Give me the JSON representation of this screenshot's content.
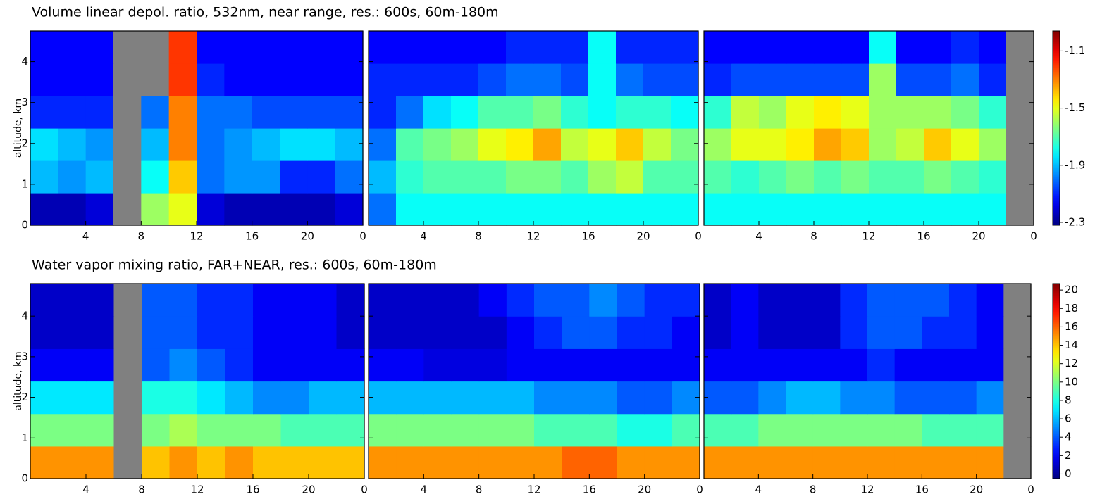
{
  "chart_data": [
    {
      "type": "heatmap",
      "title": "Volume linear depol. ratio, 532nm, near range, res.: 600s, 60m-180m",
      "ylabel": "altitude, km",
      "ylim": [
        0,
        4.75
      ],
      "yticks": [
        0,
        1,
        2,
        3,
        4
      ],
      "clim": [
        -2.32,
        -0.96
      ],
      "cticks": [
        -2.3,
        -1.9,
        -1.5,
        -1.1
      ],
      "panels": [
        {
          "xlim": [
            0,
            24
          ],
          "xticks": [
            4,
            8,
            12,
            16,
            20,
            {
              "value": 24,
              "label": "0"
            }
          ],
          "z": [
            [
              -2.25,
              -2.25,
              -2.2,
              null,
              -1.6,
              -1.5,
              -2.2,
              -2.25,
              -2.25,
              -2.25,
              -2.25,
              -2.2
            ],
            [
              -1.9,
              -1.95,
              -1.9,
              null,
              -1.8,
              -1.4,
              -2.0,
              -1.95,
              -1.95,
              -2.1,
              -2.1,
              -2.0
            ],
            [
              -1.85,
              -1.9,
              -1.95,
              null,
              -1.9,
              -1.3,
              -2.0,
              -1.95,
              -1.9,
              -1.85,
              -1.85,
              -1.9
            ],
            [
              -2.1,
              -2.1,
              -2.1,
              null,
              -2.0,
              -1.3,
              -2.0,
              -2.0,
              -2.05,
              -2.05,
              -2.05,
              -2.05
            ],
            [
              -2.15,
              -2.15,
              -2.15,
              null,
              null,
              -1.2,
              -2.1,
              -2.15,
              -2.15,
              -2.15,
              -2.15,
              -2.15
            ],
            [
              -2.15,
              -2.15,
              -2.15,
              null,
              null,
              -1.2,
              -2.15,
              -2.15,
              -2.15,
              -2.15,
              -2.15,
              -2.15
            ]
          ]
        },
        {
          "xlim": [
            0,
            24
          ],
          "xticks": [
            4,
            8,
            12,
            16,
            20,
            {
              "value": 24,
              "label": "0"
            }
          ],
          "z": [
            [
              -2.0,
              -1.8,
              -1.8,
              -1.8,
              -1.8,
              -1.8,
              -1.8,
              -1.8,
              -1.8,
              -1.8,
              -1.8,
              -1.8
            ],
            [
              -1.9,
              -1.75,
              -1.7,
              -1.7,
              -1.7,
              -1.65,
              -1.65,
              -1.7,
              -1.6,
              -1.55,
              -1.7,
              -1.7
            ],
            [
              -2.0,
              -1.7,
              -1.65,
              -1.6,
              -1.5,
              -1.45,
              -1.35,
              -1.55,
              -1.5,
              -1.4,
              -1.55,
              -1.65
            ],
            [
              -2.1,
              -2.0,
              -1.85,
              -1.8,
              -1.7,
              -1.7,
              -1.65,
              -1.75,
              -1.8,
              -1.75,
              -1.75,
              -1.8
            ],
            [
              -2.1,
              -2.1,
              -2.1,
              -2.1,
              -2.05,
              -2.0,
              -2.0,
              -2.05,
              -1.8,
              -2.0,
              -2.05,
              -2.05
            ],
            [
              -2.15,
              -2.15,
              -2.15,
              -2.15,
              -2.15,
              -2.1,
              -2.1,
              -2.1,
              -1.8,
              -2.1,
              -2.1,
              -2.1
            ]
          ]
        },
        {
          "xlim": [
            0,
            24
          ],
          "xticks": [
            4,
            8,
            12,
            16,
            20,
            {
              "value": 24,
              "label": "0"
            }
          ],
          "z": [
            [
              -1.8,
              -1.8,
              -1.8,
              -1.8,
              -1.8,
              -1.8,
              -1.8,
              -1.8,
              -1.8,
              -1.8,
              -1.8,
              null
            ],
            [
              -1.7,
              -1.75,
              -1.7,
              -1.65,
              -1.7,
              -1.65,
              -1.7,
              -1.7,
              -1.65,
              -1.7,
              -1.75,
              null
            ],
            [
              -1.6,
              -1.5,
              -1.5,
              -1.45,
              -1.35,
              -1.4,
              -1.6,
              -1.55,
              -1.4,
              -1.5,
              -1.6,
              null
            ],
            [
              -1.75,
              -1.55,
              -1.6,
              -1.5,
              -1.45,
              -1.5,
              -1.6,
              -1.6,
              -1.6,
              -1.65,
              -1.75,
              null
            ],
            [
              -2.1,
              -2.05,
              -2.05,
              -2.05,
              -2.05,
              -2.05,
              -1.6,
              -2.05,
              -2.05,
              -2.0,
              -2.1,
              null
            ],
            [
              -2.15,
              -2.15,
              -2.15,
              -2.15,
              -2.15,
              -2.15,
              -1.8,
              -2.15,
              -2.15,
              -2.1,
              -2.15,
              null
            ]
          ]
        }
      ]
    },
    {
      "type": "heatmap",
      "title": "Water vapor mixing ratio, FAR+NEAR, res.: 600s, 60m-180m",
      "ylabel": "altitude, km",
      "ylim": [
        0,
        4.8
      ],
      "yticks": [
        0,
        1,
        2,
        3,
        4
      ],
      "clim": [
        -0.5,
        20.7
      ],
      "cticks": [
        0,
        2,
        4,
        6,
        8,
        10,
        12,
        14,
        16,
        18,
        20
      ],
      "panels": [
        {
          "xlim": [
            0,
            24
          ],
          "xticks": [
            4,
            8,
            12,
            16,
            20,
            {
              "value": 24,
              "label": "0"
            }
          ],
          "z": [
            [
              15,
              15,
              15,
              null,
              14,
              15,
              14,
              15,
              14,
              14,
              14,
              14
            ],
            [
              10,
              10,
              10,
              null,
              10,
              11,
              10,
              10,
              10,
              9,
              9,
              9
            ],
            [
              7,
              7,
              7,
              null,
              8,
              8,
              7,
              6,
              5,
              5,
              6,
              6
            ],
            [
              2,
              2,
              2,
              null,
              4,
              5,
              4,
              3,
              2,
              2,
              2,
              2
            ],
            [
              1,
              1,
              1,
              null,
              4,
              4,
              3,
              3,
              2,
              2,
              2,
              1
            ],
            [
              1,
              1,
              1,
              null,
              4,
              4,
              3,
              3,
              2,
              2,
              2,
              1
            ]
          ]
        },
        {
          "xlim": [
            0,
            24
          ],
          "xticks": [
            4,
            8,
            12,
            16,
            20,
            {
              "value": 24,
              "label": "0"
            }
          ],
          "z": [
            [
              15,
              15,
              15,
              15,
              15,
              15,
              15,
              16,
              16,
              15,
              15,
              15
            ],
            [
              10,
              10,
              10,
              10,
              10,
              10,
              9,
              9,
              9,
              8,
              8,
              9
            ],
            [
              6,
              6,
              6,
              6,
              6,
              6,
              5,
              5,
              5,
              4,
              4,
              5
            ],
            [
              2,
              2,
              1.5,
              1.5,
              1.5,
              2,
              2,
              2,
              2,
              2,
              2,
              2
            ],
            [
              1,
              1,
              1,
              1,
              1,
              2,
              3,
              4,
              4,
              3,
              3,
              2
            ],
            [
              1,
              1,
              1,
              1,
              2,
              3,
              4,
              4,
              5,
              4,
              3,
              3
            ]
          ]
        },
        {
          "xlim": [
            0,
            24
          ],
          "xticks": [
            4,
            8,
            12,
            16,
            20,
            {
              "value": 24,
              "label": "0"
            }
          ],
          "z": [
            [
              15,
              15,
              15,
              15,
              15,
              15,
              15,
              15,
              15,
              15,
              15,
              null
            ],
            [
              9,
              9,
              10,
              10,
              10,
              10,
              10,
              10,
              9,
              9,
              9,
              null
            ],
            [
              4,
              4,
              5,
              6,
              6,
              5,
              5,
              4,
              4,
              4,
              5,
              null
            ],
            [
              2,
              2,
              2,
              2,
              2,
              2,
              3,
              2,
              2,
              2,
              2,
              null
            ],
            [
              1,
              2,
              1,
              1,
              1,
              3,
              4,
              4,
              3,
              3,
              2,
              null
            ],
            [
              1,
              2,
              1,
              1,
              1,
              3,
              4,
              4,
              4,
              3,
              2,
              null
            ]
          ]
        }
      ]
    }
  ]
}
